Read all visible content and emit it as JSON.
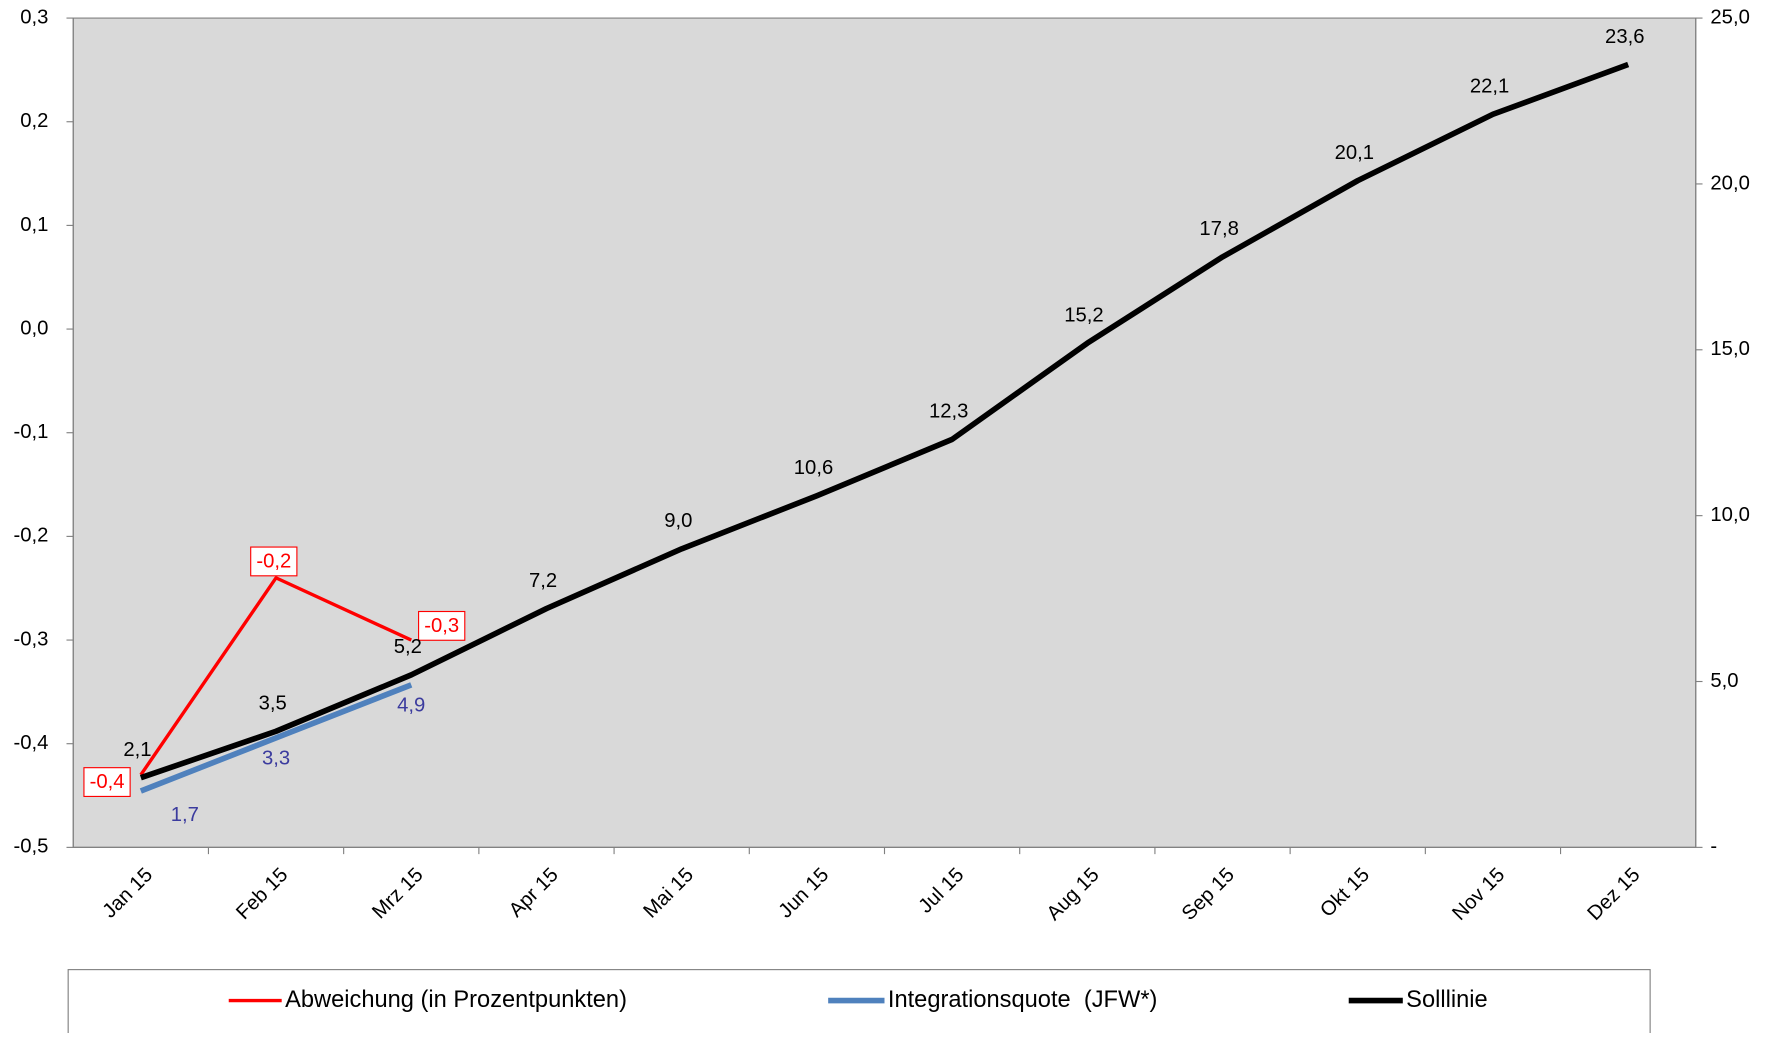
{
  "chart_data": {
    "type": "line",
    "categories": [
      "Jan 15",
      "Feb 15",
      "Mrz 15",
      "Apr 15",
      "Mai 15",
      "Jun 15",
      "Jul 15",
      "Aug 15",
      "Sep 15",
      "Okt 15",
      "Nov 15",
      "Dez 15"
    ],
    "ylim": [
      -0.5,
      0.3
    ],
    "yticks": [
      {
        "value": -0.5,
        "label": "-0,5"
      },
      {
        "value": -0.4,
        "label": "-0,4"
      },
      {
        "value": -0.3,
        "label": "-0,3"
      },
      {
        "value": -0.2,
        "label": "-0,2"
      },
      {
        "value": -0.1,
        "label": "-0,1"
      },
      {
        "value": 0,
        "label": "0,0"
      },
      {
        "value": 0.1,
        "label": "0,1"
      },
      {
        "value": 0.2,
        "label": "0,2"
      },
      {
        "value": 0.3,
        "label": "0,3"
      }
    ],
    "y2lim": [
      0,
      25
    ],
    "y2ticks": [
      {
        "value": 0,
        "label": "-"
      },
      {
        "value": 5,
        "label": "5,0"
      },
      {
        "value": 10,
        "label": "10,0"
      },
      {
        "value": 15,
        "label": "15,0"
      },
      {
        "value": 20,
        "label": "20,0"
      },
      {
        "value": 25,
        "label": "25,0"
      }
    ],
    "legend": "bottom",
    "series": [
      {
        "name": "Abweichung (in Prozentpunkten)",
        "color": "#ff0000",
        "axis": "y",
        "values": [
          -0.43,
          -0.24,
          -0.3,
          null,
          null,
          null,
          null,
          null,
          null,
          null,
          null,
          null
        ],
        "value_labels": [
          "-0,4",
          "-0,2",
          "-0,3",
          null,
          null,
          null,
          null,
          null,
          null,
          null,
          null,
          null
        ]
      },
      {
        "name": "Integrationsquote  (JFW*)",
        "color": "#4f81bd",
        "axis": "y2",
        "values": [
          1.7,
          3.3,
          4.9,
          null,
          null,
          null,
          null,
          null,
          null,
          null,
          null,
          null
        ],
        "value_labels": [
          "1,7",
          "3,3",
          "4,9",
          null,
          null,
          null,
          null,
          null,
          null,
          null,
          null,
          null
        ]
      },
      {
        "name": "Solllinie",
        "color": "#000000",
        "axis": "y2",
        "values": [
          2.1,
          3.5,
          5.2,
          7.2,
          9.0,
          10.6,
          12.3,
          15.2,
          17.8,
          20.1,
          22.1,
          23.6
        ],
        "value_labels": [
          "2,1",
          "3,5",
          "5,2",
          "7,2",
          "9,0",
          "10,6",
          "12,3",
          "15,2",
          "17,8",
          "20,1",
          "22,1",
          "23,6"
        ]
      }
    ]
  }
}
